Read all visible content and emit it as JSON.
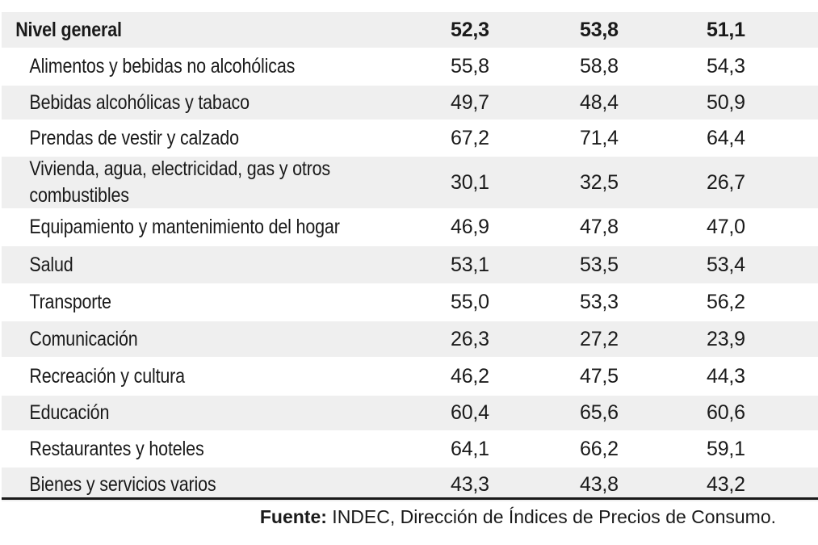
{
  "table": {
    "rows": [
      {
        "category": "Nivel general",
        "v1": "52,3",
        "v2": "53,8",
        "v3": "51,1"
      },
      {
        "category": "Alimentos y bebidas no alcohólicas",
        "v1": "55,8",
        "v2": "58,8",
        "v3": "54,3"
      },
      {
        "category": "Bebidas alcohólicas y tabaco",
        "v1": "49,7",
        "v2": "48,4",
        "v3": "50,9"
      },
      {
        "category": "Prendas de vestir y calzado",
        "v1": "67,2",
        "v2": "71,4",
        "v3": "64,4"
      },
      {
        "category": "Vivienda, agua, electricidad, gas y otros combustibles",
        "v1": "30,1",
        "v2": "32,5",
        "v3": "26,7"
      },
      {
        "category": "Equipamiento y mantenimiento del hogar",
        "v1": "46,9",
        "v2": "47,8",
        "v3": "47,0"
      },
      {
        "category": "Salud",
        "v1": "53,1",
        "v2": "53,5",
        "v3": "53,4"
      },
      {
        "category": "Transporte",
        "v1": "55,0",
        "v2": "53,3",
        "v3": "56,2"
      },
      {
        "category": "Comunicación",
        "v1": "26,3",
        "v2": "27,2",
        "v3": "23,9"
      },
      {
        "category": "Recreación y cultura",
        "v1": "46,2",
        "v2": "47,5",
        "v3": "44,3"
      },
      {
        "category": "Educación",
        "v1": "60,4",
        "v2": "65,6",
        "v3": "60,6"
      },
      {
        "category": "Restaurantes y hoteles",
        "v1": "64,1",
        "v2": "66,2",
        "v3": "59,1"
      },
      {
        "category": "Bienes y servicios varios",
        "v1": "43,3",
        "v2": "43,8",
        "v3": "43,2"
      }
    ]
  },
  "source": {
    "label": "Fuente:",
    "text": " INDEC, Dirección de Índices de Precios de Consumo."
  },
  "colors": {
    "shade": "#efefef",
    "text": "#1a1a1a"
  }
}
